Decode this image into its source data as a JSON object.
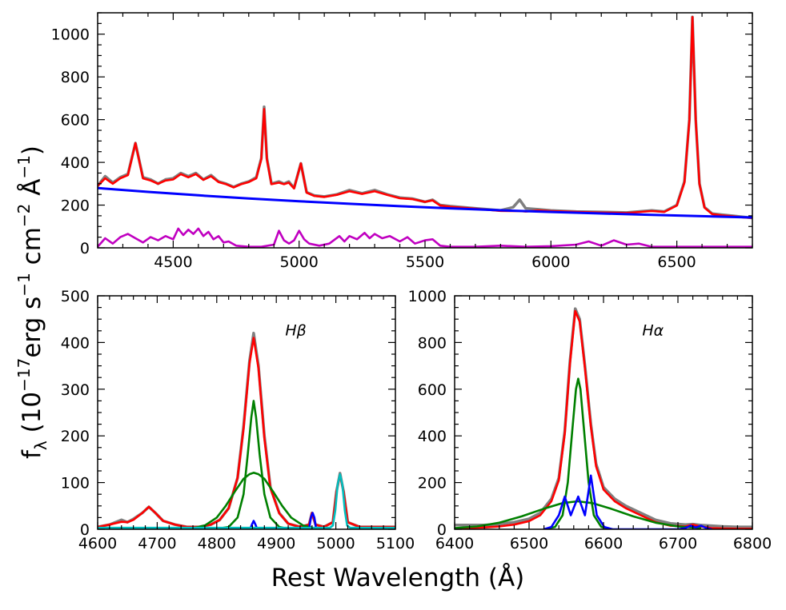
{
  "figure": {
    "ylabel": "f_λ (10^-17 erg s^-1 cm^-2 Å^-1)",
    "ylabel_parts": {
      "f": "f",
      "lambda": "λ",
      "open": " (10",
      "e1": "−17",
      "erg": "erg s",
      "e2": "−1",
      "cm": " cm",
      "e3": "−2",
      "ang": " Å",
      "e4": "−1",
      "close": ")"
    },
    "xlabel": "Rest Wavelength (Å)"
  },
  "chart_data": [
    {
      "type": "line",
      "panel": "full-spectrum",
      "xlim": [
        4200,
        6800
      ],
      "ylim": [
        0,
        1100
      ],
      "xticks": [
        4500,
        5000,
        5500,
        6000,
        6500
      ],
      "yticks": [
        0,
        200,
        400,
        600,
        800,
        1000
      ],
      "series": [
        {
          "color": "#808080",
          "role": "observed",
          "x": [
            4200,
            4230,
            4260,
            4290,
            4320,
            4350,
            4380,
            4410,
            4440,
            4470,
            4500,
            4530,
            4560,
            4590,
            4620,
            4650,
            4680,
            4710,
            4740,
            4770,
            4800,
            4830,
            4850,
            4861,
            4872,
            4890,
            4920,
            4940,
            4959,
            4980,
            5007,
            5030,
            5060,
            5100,
            5150,
            5200,
            5250,
            5300,
            5350,
            5400,
            5450,
            5500,
            5530,
            5560,
            5600,
            5650,
            5700,
            5750,
            5800,
            5850,
            5876,
            5900,
            5950,
            6000,
            6100,
            6200,
            6300,
            6400,
            6450,
            6500,
            6530,
            6550,
            6562,
            6575,
            6590,
            6610,
            6640,
            6680,
            6720,
            6760,
            6800
          ],
          "y": [
            290,
            335,
            305,
            330,
            345,
            490,
            330,
            320,
            300,
            320,
            325,
            350,
            335,
            350,
            320,
            340,
            310,
            300,
            285,
            300,
            310,
            330,
            420,
            660,
            420,
            300,
            310,
            300,
            310,
            280,
            395,
            260,
            245,
            240,
            250,
            270,
            255,
            270,
            250,
            235,
            230,
            215,
            225,
            200,
            195,
            190,
            185,
            180,
            175,
            190,
            225,
            185,
            180,
            175,
            170,
            168,
            165,
            175,
            170,
            200,
            310,
            600,
            1080,
            600,
            300,
            190,
            160,
            155,
            150,
            145,
            140
          ]
        },
        {
          "color": "#ff0000",
          "role": "model",
          "x": [
            4200,
            4230,
            4260,
            4290,
            4320,
            4350,
            4380,
            4410,
            4440,
            4470,
            4500,
            4530,
            4560,
            4590,
            4620,
            4650,
            4680,
            4710,
            4740,
            4770,
            4800,
            4830,
            4850,
            4861,
            4872,
            4890,
            4920,
            4940,
            4959,
            4980,
            5007,
            5030,
            5060,
            5100,
            5150,
            5200,
            5250,
            5300,
            5350,
            5400,
            5450,
            5500,
            5530,
            5560,
            5600,
            5650,
            5700,
            5750,
            5800,
            5850,
            5876,
            5900,
            5950,
            6000,
            6100,
            6200,
            6300,
            6400,
            6450,
            6500,
            6530,
            6550,
            6562,
            6575,
            6590,
            6610,
            6640,
            6680,
            6720,
            6760,
            6800
          ],
          "y": [
            290,
            325,
            300,
            325,
            340,
            490,
            325,
            315,
            300,
            315,
            320,
            345,
            330,
            345,
            318,
            335,
            308,
            298,
            283,
            298,
            308,
            325,
            415,
            650,
            415,
            298,
            305,
            298,
            305,
            278,
            395,
            258,
            243,
            238,
            248,
            265,
            252,
            265,
            248,
            232,
            228,
            215,
            222,
            198,
            192,
            188,
            183,
            178,
            173,
            172,
            172,
            170,
            175,
            172,
            168,
            165,
            163,
            172,
            168,
            198,
            305,
            600,
            1080,
            600,
            298,
            188,
            158,
            152,
            148,
            143,
            140
          ]
        },
        {
          "color": "#0000ff",
          "role": "continuum",
          "x": [
            4200,
            4400,
            4600,
            4800,
            5000,
            5200,
            5400,
            5600,
            5800,
            6000,
            6200,
            6400,
            6600,
            6800
          ],
          "y": [
            280,
            262,
            246,
            231,
            218,
            206,
            195,
            185,
            176,
            168,
            161,
            154,
            148,
            142
          ]
        },
        {
          "color": "#c000c0",
          "role": "FeII",
          "x": [
            4200,
            4230,
            4260,
            4290,
            4320,
            4350,
            4380,
            4410,
            4440,
            4470,
            4500,
            4520,
            4540,
            4560,
            4580,
            4600,
            4620,
            4640,
            4660,
            4680,
            4700,
            4720,
            4750,
            4800,
            4850,
            4900,
            4920,
            4940,
            4960,
            4980,
            5000,
            5020,
            5040,
            5080,
            5120,
            5160,
            5180,
            5200,
            5230,
            5260,
            5280,
            5300,
            5330,
            5360,
            5400,
            5430,
            5460,
            5500,
            5530,
            5560,
            5600,
            5700,
            5800,
            5900,
            6000,
            6100,
            6150,
            6200,
            6250,
            6300,
            6350,
            6400,
            6500,
            6600,
            6700,
            6800
          ],
          "y": [
            5,
            45,
            20,
            50,
            65,
            45,
            25,
            50,
            35,
            55,
            40,
            90,
            60,
            85,
            65,
            90,
            55,
            75,
            40,
            55,
            25,
            30,
            10,
            5,
            5,
            15,
            80,
            35,
            20,
            35,
            80,
            40,
            20,
            10,
            20,
            55,
            30,
            55,
            40,
            70,
            45,
            65,
            45,
            55,
            30,
            50,
            20,
            35,
            40,
            10,
            5,
            5,
            10,
            5,
            8,
            15,
            30,
            10,
            35,
            15,
            20,
            5,
            5,
            5,
            5,
            5
          ]
        }
      ]
    },
    {
      "type": "line",
      "panel": "hbeta",
      "annotation": "Hβ",
      "xlim": [
        4600,
        5100
      ],
      "ylim": [
        0,
        500
      ],
      "xticks": [
        4600,
        4700,
        4800,
        4900,
        5000,
        5100
      ],
      "yticks": [
        0,
        100,
        200,
        300,
        400,
        500
      ],
      "series": [
        {
          "color": "#808080",
          "role": "observed",
          "x": [
            4600,
            4620,
            4640,
            4650,
            4660,
            4675,
            4686,
            4697,
            4710,
            4730,
            4750,
            4770,
            4790,
            4805,
            4820,
            4835,
            4845,
            4855,
            4862,
            4870,
            4880,
            4890,
            4905,
            4920,
            4940,
            4955,
            4960,
            4966,
            4980,
            4995,
            5001,
            5007,
            5013,
            5020,
            5040,
            5070,
            5100
          ],
          "y": [
            5,
            10,
            20,
            15,
            22,
            35,
            48,
            35,
            18,
            10,
            5,
            5,
            10,
            20,
            45,
            110,
            220,
            360,
            420,
            350,
            200,
            90,
            35,
            12,
            5,
            10,
            35,
            10,
            5,
            15,
            80,
            120,
            80,
            15,
            5,
            5,
            5
          ]
        },
        {
          "color": "#ff0000",
          "role": "model",
          "x": [
            4600,
            4620,
            4640,
            4650,
            4660,
            4675,
            4686,
            4697,
            4710,
            4730,
            4750,
            4770,
            4790,
            4805,
            4820,
            4835,
            4845,
            4855,
            4862,
            4870,
            4880,
            4890,
            4905,
            4920,
            4940,
            4955,
            4960,
            4966,
            4980,
            4995,
            5001,
            5007,
            5013,
            5020,
            5040,
            5070,
            5100
          ],
          "y": [
            5,
            10,
            16,
            15,
            20,
            35,
            48,
            35,
            18,
            10,
            5,
            5,
            10,
            20,
            45,
            110,
            215,
            355,
            410,
            345,
            195,
            88,
            34,
            12,
            5,
            10,
            35,
            10,
            5,
            15,
            80,
            118,
            80,
            15,
            5,
            5,
            5
          ]
        },
        {
          "color": "#008000",
          "role": "broad-component-1",
          "x": [
            4780,
            4800,
            4820,
            4835,
            4845,
            4852,
            4858,
            4862,
            4866,
            4872,
            4880,
            4890,
            4905,
            4920,
            4940
          ],
          "y": [
            0,
            1,
            5,
            25,
            75,
            160,
            240,
            275,
            240,
            160,
            75,
            25,
            5,
            1,
            0
          ]
        },
        {
          "color": "#008000",
          "role": "broad-component-2",
          "x": [
            4760,
            4780,
            4800,
            4815,
            4830,
            4845,
            4855,
            4862,
            4870,
            4880,
            4895,
            4910,
            4925,
            4945,
            4965
          ],
          "y": [
            2,
            8,
            25,
            50,
            80,
            108,
            118,
            121,
            118,
            108,
            80,
            50,
            25,
            8,
            2
          ]
        },
        {
          "color": "#0000ff",
          "role": "narrow-lines",
          "x": [
            4850,
            4856,
            4859,
            4862,
            4865,
            4868,
            4874,
            4950,
            4955,
            4958,
            4961,
            4964,
            4967,
            4972
          ],
          "y": [
            0,
            0,
            10,
            18,
            10,
            0,
            0,
            0,
            0,
            25,
            35,
            25,
            0,
            0
          ]
        },
        {
          "color": "#00bfbf",
          "role": "OIII",
          "x": [
            4600,
            4990,
            4995,
            4999,
            5003,
            5007,
            5011,
            5015,
            5019,
            5024,
            5100
          ],
          "y": [
            3,
            3,
            8,
            40,
            95,
            118,
            95,
            40,
            8,
            3,
            3
          ]
        }
      ]
    },
    {
      "type": "line",
      "panel": "halpha",
      "annotation": "Hα",
      "xlim": [
        6400,
        6800
      ],
      "ylim": [
        0,
        1000
      ],
      "xticks": [
        6400,
        6500,
        6600,
        6700,
        6800
      ],
      "yticks": [
        0,
        200,
        400,
        600,
        800,
        1000
      ],
      "series": [
        {
          "color": "#808080",
          "role": "observed",
          "x": [
            6400,
            6420,
            6440,
            6460,
            6480,
            6500,
            6515,
            6530,
            6540,
            6548,
            6555,
            6562,
            6568,
            6575,
            6583,
            6590,
            6600,
            6615,
            6630,
            6650,
            6670,
            6690,
            6710,
            6720,
            6730,
            6745,
            6760,
            6780,
            6800
          ],
          "y": [
            18,
            18,
            18,
            22,
            30,
            45,
            70,
            130,
            220,
            420,
            720,
            945,
            900,
            700,
            450,
            280,
            180,
            130,
            100,
            70,
            40,
            25,
            20,
            22,
            18,
            15,
            12,
            10,
            10
          ]
        },
        {
          "color": "#ff0000",
          "role": "model",
          "x": [
            6400,
            6420,
            6440,
            6460,
            6480,
            6500,
            6515,
            6530,
            6540,
            6548,
            6555,
            6562,
            6568,
            6575,
            6583,
            6590,
            6600,
            6615,
            6630,
            6650,
            6670,
            6690,
            6710,
            6720,
            6730,
            6745,
            6760,
            6780,
            6800
          ],
          "y": [
            3,
            5,
            8,
            12,
            20,
            35,
            60,
            120,
            210,
            410,
            710,
            935,
            890,
            690,
            440,
            270,
            170,
            120,
            90,
            60,
            30,
            15,
            12,
            20,
            12,
            5,
            3,
            2,
            2
          ]
        },
        {
          "color": "#008000",
          "role": "broad-component-1",
          "x": [
            6520,
            6535,
            6545,
            6552,
            6558,
            6563,
            6566,
            6569,
            6574,
            6580,
            6587,
            6597,
            6612
          ],
          "y": [
            0,
            10,
            60,
            200,
            420,
            600,
            645,
            600,
            420,
            200,
            60,
            10,
            0
          ]
        },
        {
          "color": "#008000",
          "role": "broad-component-2",
          "x": [
            6400,
            6430,
            6460,
            6490,
            6520,
            6545,
            6565,
            6585,
            6610,
            6640,
            6670,
            6700,
            6730
          ],
          "y": [
            5,
            12,
            28,
            55,
            88,
            112,
            120,
            112,
            88,
            55,
            28,
            12,
            5
          ]
        },
        {
          "color": "#0000ff",
          "role": "narrow-lines",
          "x": [
            6520,
            6530,
            6540,
            6548,
            6556,
            6566,
            6575,
            6583,
            6591,
            6601,
            6612,
            6700,
            6710,
            6717,
            6724,
            6731,
            6738,
            6745
          ],
          "y": [
            0,
            10,
            60,
            140,
            60,
            140,
            60,
            230,
            60,
            10,
            0,
            0,
            5,
            15,
            8,
            15,
            5,
            0
          ]
        }
      ]
    }
  ]
}
